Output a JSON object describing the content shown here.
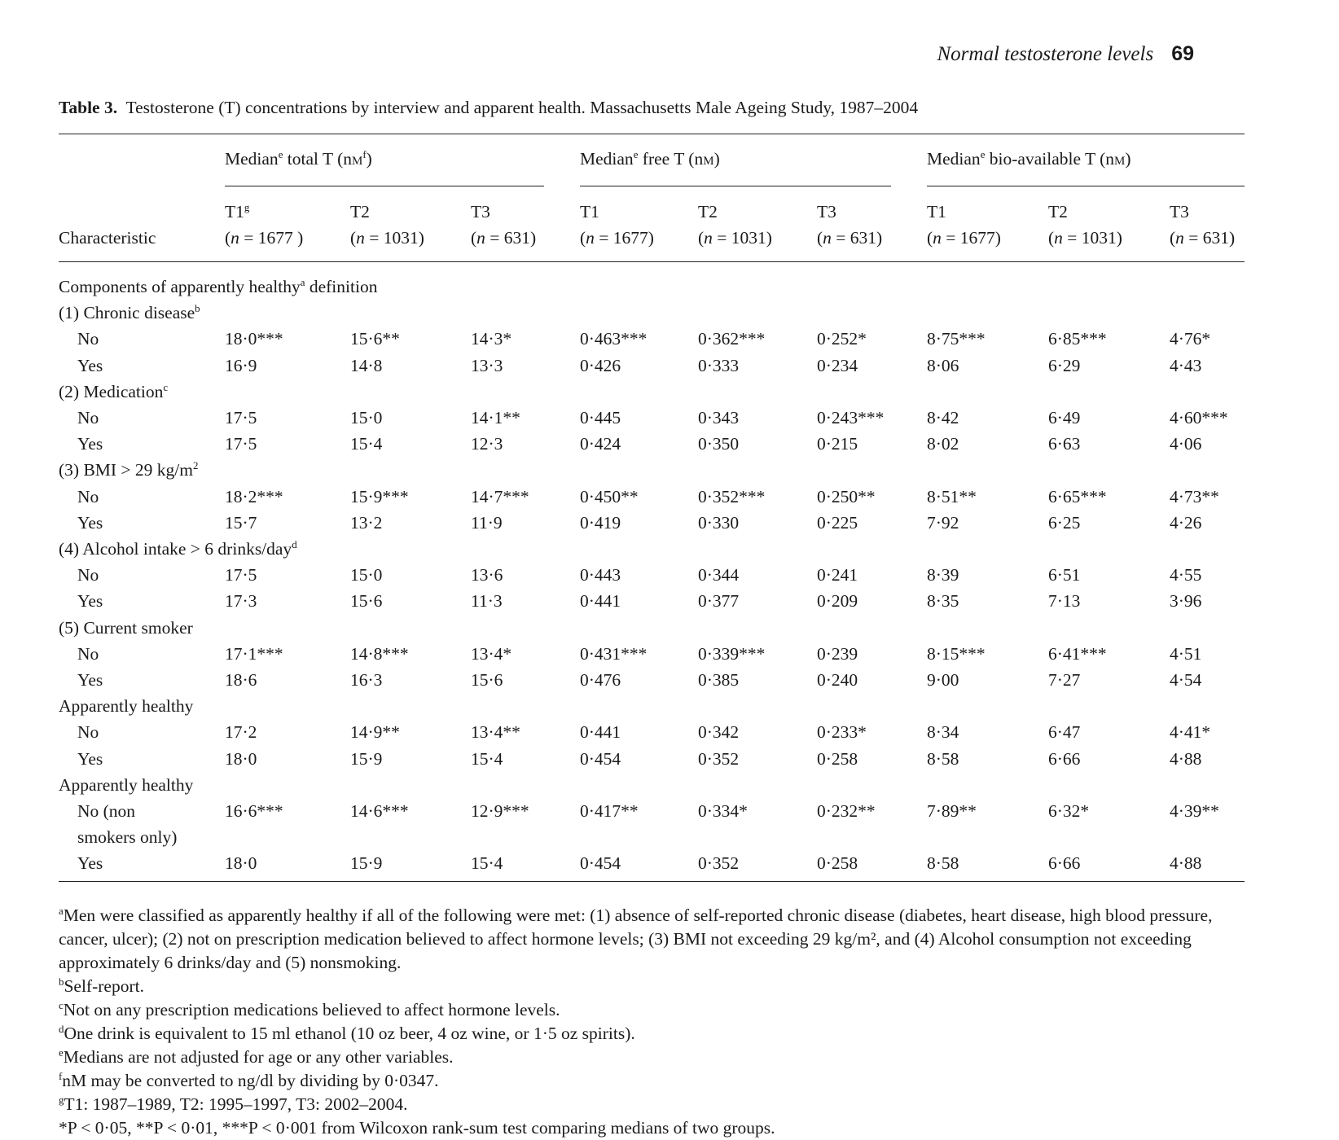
{
  "running_head": {
    "title": "Normal testosterone levels",
    "page_number": "69"
  },
  "caption": {
    "label": "Table 3.",
    "text": "Testosterone (T) concentrations by interview and apparent health. Massachusetts Male Ageing Study, 1987–2004"
  },
  "table": {
    "stub_header": "Characteristic",
    "groups": [
      {
        "pre": "Median",
        "sup": "e",
        "mid": " total T (n",
        "unit": "M",
        "unit_sup": "f",
        "post": ")"
      },
      {
        "pre": "Median",
        "sup": "e",
        "mid": " free T (n",
        "unit": "M",
        "unit_sup": "",
        "post": ")"
      },
      {
        "pre": "Median",
        "sup": "e",
        "mid": " bio-available T (n",
        "unit": "M",
        "unit_sup": "",
        "post": ")"
      }
    ],
    "columns": [
      {
        "label": "T1",
        "sup": "g",
        "n": "(n = 1677 )"
      },
      {
        "label": "T2",
        "sup": "",
        "n": "(n = 1031)"
      },
      {
        "label": "T3",
        "sup": "",
        "n": "(n = 631)"
      },
      {
        "label": "T1",
        "sup": "",
        "n": "(n = 1677)"
      },
      {
        "label": "T2",
        "sup": "",
        "n": "(n = 1031)"
      },
      {
        "label": "T3",
        "sup": "",
        "n": "(n = 631)"
      },
      {
        "label": "T1",
        "sup": "",
        "n": "(n = 1677)"
      },
      {
        "label": "T2",
        "sup": "",
        "n": "(n = 1031)"
      },
      {
        "label": "T3",
        "sup": "",
        "n": "(n = 631)"
      }
    ],
    "rows": [
      {
        "kind": "section",
        "label": "Components of apparently healthy",
        "sup": "a",
        "post": " definition"
      },
      {
        "kind": "section",
        "label": "(1) Chronic disease",
        "sup": "b",
        "post": ""
      },
      {
        "kind": "data",
        "label": "No",
        "values": [
          "18·0***",
          "15·6**",
          "14·3*",
          "0·463***",
          "0·362***",
          "0·252*",
          "8·75***",
          "6·85***",
          "4·76*"
        ]
      },
      {
        "kind": "data",
        "label": "Yes",
        "values": [
          "16·9",
          "14·8",
          "13·3",
          "0·426",
          "0·333",
          "0·234",
          "8·06",
          "6·29",
          "4·43"
        ]
      },
      {
        "kind": "section",
        "label": "(2) Medication",
        "sup": "c",
        "post": ""
      },
      {
        "kind": "data",
        "label": "No",
        "values": [
          "17·5",
          "15·0",
          "14·1**",
          "0·445",
          "0·343",
          "0·243***",
          "8·42",
          "6·49",
          "4·60***"
        ]
      },
      {
        "kind": "data",
        "label": "Yes",
        "values": [
          "17·5",
          "15·4",
          "12·3",
          "0·424",
          "0·350",
          "0·215",
          "8·02",
          "6·63",
          "4·06"
        ]
      },
      {
        "kind": "section",
        "label": "(3) BMI > 29 kg/m",
        "sup": "2",
        "post": ""
      },
      {
        "kind": "data",
        "label": "No",
        "values": [
          "18·2***",
          "15·9***",
          "14·7***",
          "0·450**",
          "0·352***",
          "0·250**",
          "8·51**",
          "6·65***",
          "4·73**"
        ]
      },
      {
        "kind": "data",
        "label": "Yes",
        "values": [
          "15·7",
          "13·2",
          "11·9",
          "0·419",
          "0·330",
          "0·225",
          "7·92",
          "6·25",
          "4·26"
        ]
      },
      {
        "kind": "section",
        "label": "(4) Alcohol intake > 6 drinks/day",
        "sup": "d",
        "post": ""
      },
      {
        "kind": "data",
        "label": "No",
        "values": [
          "17·5",
          "15·0",
          "13·6",
          "0·443",
          "0·344",
          "0·241",
          "8·39",
          "6·51",
          "4·55"
        ]
      },
      {
        "kind": "data",
        "label": "Yes",
        "values": [
          "17·3",
          "15·6",
          "11·3",
          "0·441",
          "0·377",
          "0·209",
          "8·35",
          "7·13",
          "3·96"
        ]
      },
      {
        "kind": "section",
        "label": "(5) Current smoker",
        "sup": "",
        "post": ""
      },
      {
        "kind": "data",
        "label": "No",
        "values": [
          "17·1***",
          "14·8***",
          "13·4*",
          "0·431***",
          "0·339***",
          "0·239",
          "8·15***",
          "6·41***",
          "4·51"
        ]
      },
      {
        "kind": "data",
        "label": "Yes",
        "values": [
          "18·6",
          "16·3",
          "15·6",
          "0·476",
          "0·385",
          "0·240",
          "9·00",
          "7·27",
          "4·54"
        ]
      },
      {
        "kind": "section",
        "label": "Apparently healthy",
        "sup": "",
        "post": ""
      },
      {
        "kind": "data",
        "label": "No",
        "values": [
          "17·2",
          "14·9**",
          "13·4**",
          "0·441",
          "0·342",
          "0·233*",
          "8·34",
          "6·47",
          "4·41*"
        ]
      },
      {
        "kind": "data",
        "label": "Yes",
        "values": [
          "18·0",
          "15·9",
          "15·4",
          "0·454",
          "0·352",
          "0·258",
          "8·58",
          "6·66",
          "4·88"
        ]
      },
      {
        "kind": "section",
        "label": "Apparently healthy",
        "sup": "",
        "post": ""
      },
      {
        "kind": "data",
        "label": "No (non",
        "values": [
          "16·6***",
          "14·6***",
          "12·9***",
          "0·417**",
          "0·334*",
          "0·232**",
          "7·89**",
          "6·32*",
          "4·39**"
        ]
      },
      {
        "kind": "cont",
        "label": "smokers only)"
      },
      {
        "kind": "data",
        "label": "Yes",
        "values": [
          "18·0",
          "15·9",
          "15·4",
          "0·454",
          "0·352",
          "0·258",
          "8·58",
          "6·66",
          "4·88"
        ]
      }
    ]
  },
  "footnotes": [
    {
      "mark": "a",
      "text": "Men were classified as apparently healthy if all of the following were met: (1) absence of self-reported chronic disease (diabetes, heart disease, high blood pressure, cancer, ulcer); (2) not on prescription medication believed to affect hormone levels; (3) BMI not exceeding 29 kg/m², and (4) Alcohol consumption not exceeding approximately 6 drinks/day and (5) nonsmoking."
    },
    {
      "mark": "b",
      "text": "Self-report."
    },
    {
      "mark": "c",
      "text": "Not on any prescription medications believed to affect hormone levels."
    },
    {
      "mark": "d",
      "text": "One drink is equivalent to 15 ml ethanol (10 oz beer, 4 oz wine, or 1·5 oz spirits)."
    },
    {
      "mark": "e",
      "text": "Medians are not adjusted for age or any other variables."
    },
    {
      "mark": "f",
      "text": "nM may be converted to ng/dl by dividing by 0·0347."
    },
    {
      "mark": "g",
      "text": "T1: 1987–1989, T2: 1995–1997, T3: 2002–2004."
    },
    {
      "mark": "",
      "text": "*P < 0·05, **P < 0·01, ***P < 0·001 from Wilcoxon rank-sum test comparing medians of two groups."
    }
  ]
}
